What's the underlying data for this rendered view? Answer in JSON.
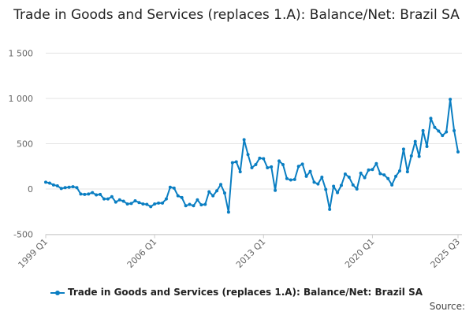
{
  "chart_data": {
    "type": "line",
    "title": "Trade in Goods and Services (replaces 1.A): Balance/Net: Brazil SA",
    "x_start": "1999 Q1",
    "x_end": "2025 Q3",
    "x_tick_labels": [
      "1999 Q1",
      "2006 Q1",
      "2013 Q1",
      "2020 Q1",
      "2025 Q3"
    ],
    "y_tick_labels": [
      "1 500",
      "1 000",
      "500",
      "0",
      "-500"
    ],
    "y_ticks": [
      1500,
      1000,
      500,
      0,
      -500
    ],
    "ylim": [
      -500,
      1500
    ],
    "grid": true,
    "legend_position": "bottom",
    "series": [
      {
        "name": "Trade in Goods and Services (replaces 1.A): Balance/Net: Brazil SA",
        "color": "#0a7ec2",
        "values": [
          75,
          65,
          45,
          35,
          5,
          15,
          20,
          25,
          15,
          -55,
          -60,
          -55,
          -40,
          -65,
          -60,
          -110,
          -110,
          -85,
          -145,
          -120,
          -135,
          -165,
          -160,
          -130,
          -150,
          -165,
          -170,
          -195,
          -165,
          -155,
          -155,
          -110,
          20,
          10,
          -75,
          -95,
          -185,
          -170,
          -185,
          -120,
          -175,
          -170,
          -30,
          -75,
          -20,
          50,
          -45,
          -255,
          290,
          300,
          190,
          545,
          380,
          235,
          270,
          340,
          335,
          235,
          245,
          -15,
          310,
          270,
          115,
          100,
          105,
          250,
          275,
          140,
          195,
          75,
          55,
          130,
          -5,
          -225,
          30,
          -40,
          40,
          165,
          130,
          45,
          0,
          175,
          125,
          210,
          215,
          280,
          170,
          155,
          115,
          45,
          140,
          200,
          440,
          190,
          365,
          525,
          360,
          645,
          470,
          780,
          680,
          640,
          590,
          630,
          990,
          645,
          410
        ]
      }
    ]
  },
  "source_label": "Source:"
}
